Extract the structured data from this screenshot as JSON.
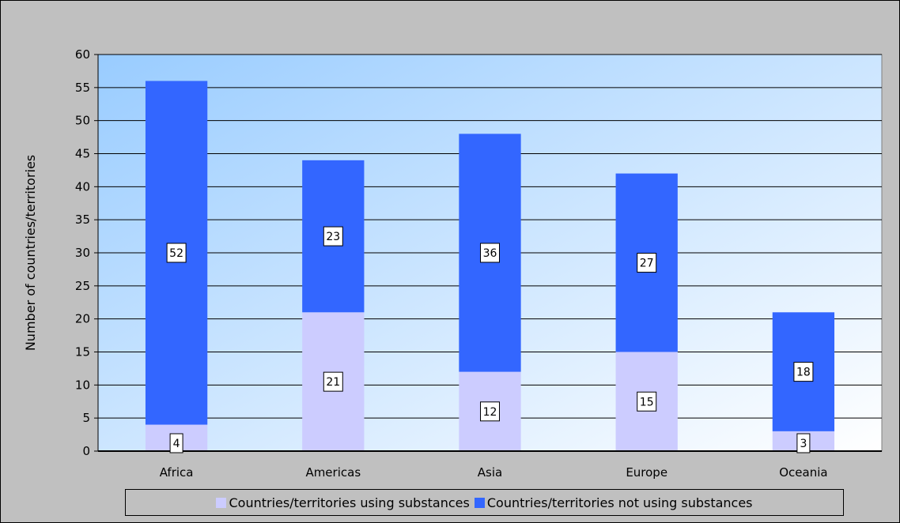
{
  "chart_data": {
    "type": "bar",
    "stacked": true,
    "categories": [
      "Africa",
      "Americas",
      "Asia",
      "Europe",
      "Oceania"
    ],
    "series": [
      {
        "name": "Countries/territories using substances",
        "values": [
          4,
          21,
          12,
          15,
          3
        ],
        "color": "#ccccff"
      },
      {
        "name": "Countries/territories not using substances",
        "values": [
          52,
          23,
          36,
          27,
          18
        ],
        "color": "#3366ff"
      }
    ],
    "ylabel": "Number of countries/territories",
    "xlabel": "",
    "ylim": [
      0,
      60
    ],
    "yticks": [
      0,
      5,
      10,
      15,
      20,
      25,
      30,
      35,
      40,
      45,
      50,
      55,
      60
    ],
    "grid": true,
    "legend_position": "bottom",
    "data_labels": true,
    "background_gradient": [
      "#99ccff",
      "#ffffff"
    ]
  }
}
